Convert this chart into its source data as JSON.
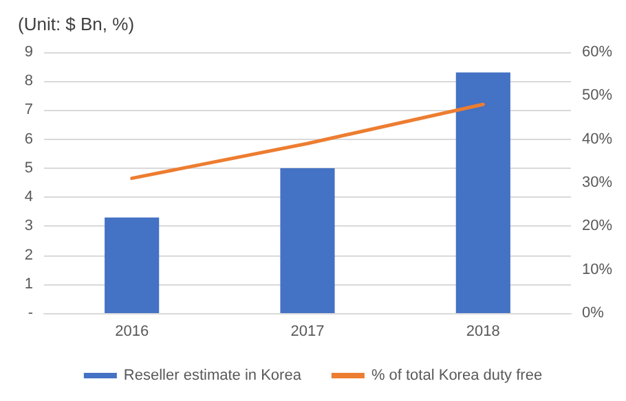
{
  "chart_data": {
    "type": "bar",
    "title": "(Unit: $ Bn, %)",
    "categories": [
      "2016",
      "2017",
      "2018"
    ],
    "series": [
      {
        "name": "Reseller estimate in Korea",
        "color": "#4472c4",
        "values": [
          3.3,
          5.0,
          8.3
        ]
      },
      {
        "name": "% of total Korea duty free",
        "type": "line",
        "axis": "y2",
        "color": "#ed7d31",
        "values": [
          31,
          39,
          48
        ]
      }
    ],
    "ylim": [
      0,
      9
    ],
    "yticks": [
      {
        "value": 0,
        "label": "-"
      },
      1,
      2,
      3,
      4,
      5,
      6,
      7,
      8,
      9
    ],
    "y2lim": [
      0,
      60
    ],
    "y2ticks": [
      {
        "value": 0,
        "label": "0%"
      },
      {
        "value": 10,
        "label": "10%"
      },
      {
        "value": 20,
        "label": "20%"
      },
      {
        "value": 30,
        "label": "30%"
      },
      {
        "value": 40,
        "label": "40%"
      },
      {
        "value": 50,
        "label": "50%"
      },
      {
        "value": 60,
        "label": "60%"
      }
    ],
    "grid": "y",
    "legend": "bottom",
    "marker": "none",
    "line_style": "solid"
  }
}
